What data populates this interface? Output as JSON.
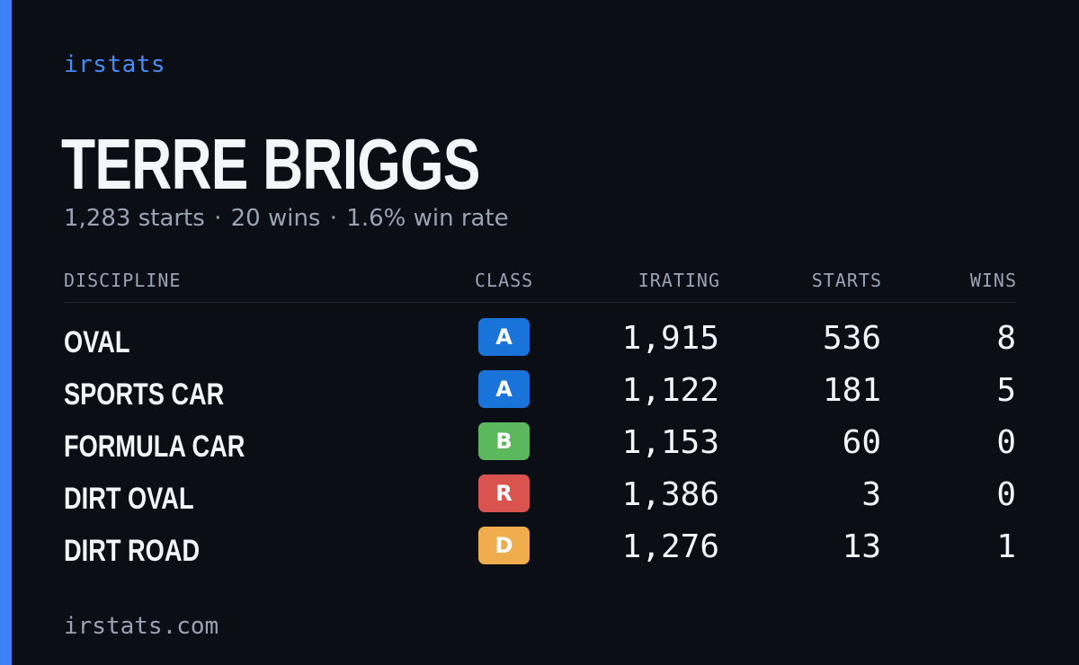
{
  "brand": "irstats",
  "driver": {
    "name": "TERRE BRIGGS",
    "starts_text": "1,283 starts",
    "wins_text": "20 wins",
    "winrate_text": "1.6% win rate",
    "separator": "·"
  },
  "table": {
    "headers": {
      "discipline": "DISCIPLINE",
      "class": "CLASS",
      "irating": "IRATING",
      "starts": "STARTS",
      "wins": "WINS"
    },
    "rows": [
      {
        "discipline": "OVAL",
        "class": "A",
        "class_color": "#1a73d9",
        "irating": "1,915",
        "starts": "536",
        "wins": "8"
      },
      {
        "discipline": "SPORTS CAR",
        "class": "A",
        "class_color": "#1a73d9",
        "irating": "1,122",
        "starts": "181",
        "wins": "5"
      },
      {
        "discipline": "FORMULA CAR",
        "class": "B",
        "class_color": "#5cb85c",
        "irating": "1,153",
        "starts": "60",
        "wins": "0"
      },
      {
        "discipline": "DIRT OVAL",
        "class": "R",
        "class_color": "#d9534f",
        "irating": "1,386",
        "starts": "3",
        "wins": "0"
      },
      {
        "discipline": "DIRT ROAD",
        "class": "D",
        "class_color": "#f0ad4e",
        "irating": "1,276",
        "starts": "13",
        "wins": "1"
      }
    ]
  },
  "footer": "irstats.com",
  "colors": {
    "background": "#0b0e15",
    "accent": "#3b82f6",
    "muted": "#9aa3b3"
  }
}
